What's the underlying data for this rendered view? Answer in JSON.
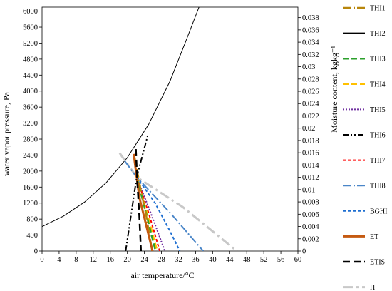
{
  "chart_data": {
    "type": "line",
    "xlabel": "air temperature/°C",
    "ylabel": "water vapor pressure, Pa",
    "y2label": "Moisture content, kgkg⁻¹",
    "xlim": [
      0,
      60
    ],
    "ylim": [
      0,
      6100
    ],
    "y2lim": [
      0,
      0.0397
    ],
    "x_ticks": [
      0,
      4,
      8,
      12,
      16,
      20,
      24,
      28,
      32,
      36,
      40,
      44,
      48,
      52,
      56,
      60
    ],
    "y_ticks": [
      0,
      400,
      800,
      1200,
      1600,
      2000,
      2400,
      2800,
      3200,
      3600,
      4000,
      4400,
      4800,
      5200,
      5600,
      6000
    ],
    "y2_ticks": [
      "0",
      "0.002",
      "0.004",
      "0.006",
      "0.008",
      "0.01",
      "0.012",
      "0.014",
      "0.016",
      "0.018",
      "0.02",
      "0.022",
      "0.024",
      "0.026",
      "0.028",
      "0.03",
      "0.032",
      "0.034",
      "0.036",
      "0.038"
    ],
    "grid": false,
    "legend_position": "right",
    "series": [
      {
        "name": "THI1",
        "color": "#b8860b",
        "dash": "12 3 2 3",
        "width": 2.5,
        "points": [
          [
            21.6,
            2400
          ],
          [
            23.2,
            1500
          ],
          [
            24.4,
            900
          ],
          [
            25.8,
            0
          ]
        ]
      },
      {
        "name": "THI2",
        "color": "#000000",
        "dash": "",
        "width": 1,
        "points": [
          [
            0,
            611
          ],
          [
            5,
            872
          ],
          [
            10,
            1228
          ],
          [
            15,
            1705
          ],
          [
            20,
            2339
          ],
          [
            25,
            3169
          ],
          [
            30,
            4246
          ],
          [
            34,
            5324
          ],
          [
            36.8,
            6100
          ]
        ]
      },
      {
        "name": "THI3",
        "color": "#2ca02c",
        "dash": "8 4",
        "width": 2.5,
        "points": [
          [
            22.2,
            1850
          ],
          [
            24.5,
            900
          ],
          [
            26.6,
            0
          ]
        ]
      },
      {
        "name": "THI4",
        "color": "#ffc000",
        "dash": "8 4",
        "width": 2.5,
        "points": [
          [
            22.2,
            1850
          ],
          [
            25.0,
            800
          ],
          [
            27.0,
            0
          ]
        ]
      },
      {
        "name": "THI5",
        "color": "#7030a0",
        "dash": "2 2",
        "width": 2,
        "points": [
          [
            22.2,
            1850
          ],
          [
            25.5,
            950
          ],
          [
            28.8,
            0
          ]
        ]
      },
      {
        "name": "THI6",
        "color": "#000000",
        "dash": "8 3 2 3 2 3",
        "width": 2,
        "points": [
          [
            19.6,
            0
          ],
          [
            22.2,
            1850
          ],
          [
            24.9,
            2940
          ]
        ]
      },
      {
        "name": "THI7",
        "color": "#ff0000",
        "dash": "4 3",
        "width": 2,
        "points": [
          [
            22.2,
            1850
          ],
          [
            25.0,
            950
          ],
          [
            27.6,
            0
          ]
        ]
      },
      {
        "name": "THI8",
        "color": "#4a86c8",
        "dash": "12 3 2 3",
        "width": 2,
        "points": [
          [
            19.4,
            2250
          ],
          [
            22.2,
            1850
          ],
          [
            30.5,
            900
          ],
          [
            37.8,
            0
          ]
        ]
      },
      {
        "name": "BGHI",
        "color": "#1f6fd1",
        "dash": "4 3",
        "width": 2,
        "points": [
          [
            22.2,
            1850
          ],
          [
            26.5,
            1200
          ],
          [
            30.0,
            500
          ],
          [
            32.3,
            0
          ]
        ]
      },
      {
        "name": "ET",
        "color": "#c55a11",
        "dash": "",
        "width": 3,
        "points": [
          [
            21.5,
            2430
          ],
          [
            22.8,
            1350
          ],
          [
            24.3,
            700
          ],
          [
            25.9,
            0
          ]
        ]
      },
      {
        "name": "ETIS",
        "color": "#000000",
        "dash": "10 5",
        "width": 2.5,
        "points": [
          [
            22.0,
            2550
          ],
          [
            22.3,
            1800
          ],
          [
            22.8,
            900
          ],
          [
            23.2,
            0
          ]
        ]
      },
      {
        "name": "H",
        "color": "#c8c8c8",
        "dash": "14 5 3 5",
        "width": 3,
        "points": [
          [
            18.2,
            2450
          ],
          [
            22.2,
            1850
          ],
          [
            33.0,
            1100
          ],
          [
            45.7,
            0
          ]
        ]
      }
    ]
  }
}
